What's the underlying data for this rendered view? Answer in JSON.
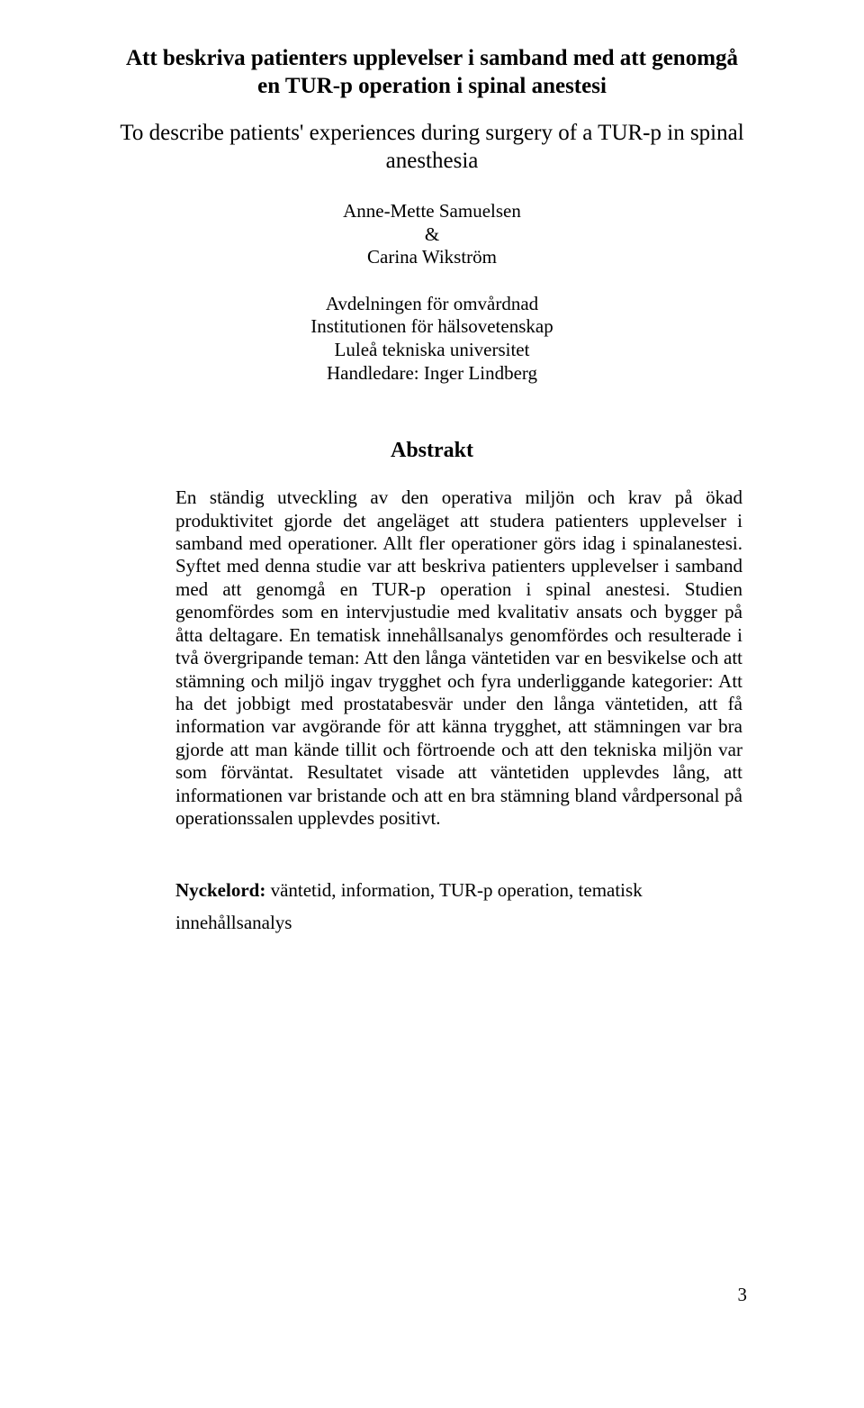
{
  "title_sv": "Att beskriva patienters upplevelser i samband med att genomgå en TUR-p operation i spinal anestesi",
  "title_en": "To describe patients' experiences during surgery of a TUR-p in spinal anesthesia",
  "authors": "Anne-Mette Samuelsen\n&\nCarina Wikström",
  "affiliation": "Avdelningen för omvårdnad\nInstitutionen för hälsovetenskap\nLuleå tekniska universitet\nHandledare: Inger Lindberg",
  "abstract_heading": "Abstrakt",
  "abstract_body": "En ständig utveckling av den operativa miljön och krav på ökad produktivitet gjorde det angeläget att studera patienters upplevelser i samband med operationer. Allt fler operationer görs idag i spinalanestesi. Syftet med denna studie var att beskriva patienters upplevelser i samband med att genomgå en TUR-p operation i spinal anestesi. Studien genomfördes som en intervjustudie med kvalitativ ansats och bygger på åtta deltagare. En tematisk innehållsanalys genomfördes och resulterade i två övergripande teman: Att den långa väntetiden var en besvikelse och att stämning och miljö ingav trygghet och fyra underliggande kategorier: Att ha det jobbigt med prostatabesvär under den långa väntetiden, att få information var avgörande för att känna trygghet, att stämningen var bra gjorde att man kände tillit och förtroende och att den tekniska miljön var som förväntat. Resultatet visade att väntetiden upplevdes lång, att informationen var bristande och att en bra stämning bland vårdpersonal på operationssalen upplevdes positivt.",
  "keywords_label": "Nyckelord:",
  "keywords_text": " väntetid, information, TUR-p operation, tematisk innehållsanalys",
  "page_number": "3"
}
